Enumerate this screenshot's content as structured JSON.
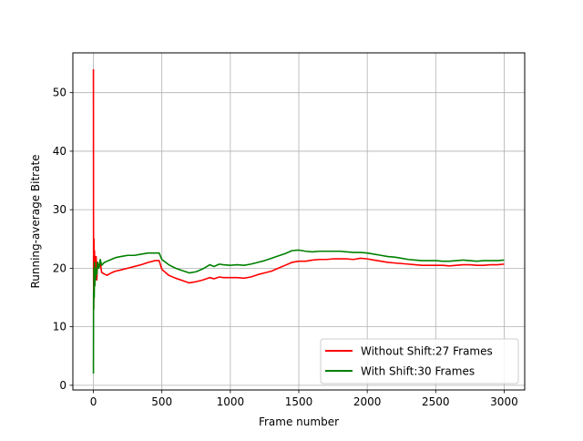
{
  "chart_data": {
    "type": "line",
    "title": "",
    "xlabel": "Frame number",
    "ylabel": "Running-average Bitrate",
    "xlim": [
      -150,
      3150
    ],
    "ylim": [
      -0.8,
      56.8
    ],
    "xticks": [
      0,
      500,
      1000,
      1500,
      2000,
      2500,
      3000
    ],
    "yticks": [
      0,
      10,
      20,
      30,
      40,
      50
    ],
    "grid": true,
    "legend_position": "lower-right",
    "series": [
      {
        "name": "Without Shift:27 Frames",
        "color": "#ff0000",
        "x": [
          0,
          1,
          2,
          4,
          6,
          8,
          10,
          12,
          15,
          20,
          25,
          30,
          40,
          50,
          60,
          80,
          100,
          130,
          160,
          200,
          250,
          300,
          350,
          400,
          450,
          480,
          500,
          550,
          600,
          650,
          700,
          750,
          800,
          850,
          880,
          920,
          950,
          1000,
          1050,
          1100,
          1150,
          1200,
          1250,
          1300,
          1350,
          1400,
          1450,
          1500,
          1550,
          1600,
          1650,
          1700,
          1750,
          1800,
          1850,
          1900,
          1950,
          2000,
          2050,
          2100,
          2150,
          2200,
          2250,
          2300,
          2350,
          2400,
          2450,
          2500,
          2550,
          2600,
          2650,
          2700,
          2750,
          2800,
          2850,
          2900,
          2950,
          3000
        ],
        "y": [
          54,
          20,
          13,
          25,
          18,
          23,
          17,
          22,
          19,
          22,
          18,
          21,
          20,
          21,
          19.3,
          19,
          18.8,
          19.2,
          19.5,
          19.7,
          20,
          20.3,
          20.6,
          21,
          21.3,
          21.3,
          19.8,
          18.8,
          18.3,
          17.9,
          17.5,
          17.7,
          18,
          18.4,
          18.2,
          18.5,
          18.4,
          18.4,
          18.4,
          18.3,
          18.5,
          18.9,
          19.2,
          19.5,
          20,
          20.5,
          21,
          21.2,
          21.2,
          21.4,
          21.5,
          21.5,
          21.6,
          21.6,
          21.6,
          21.5,
          21.7,
          21.6,
          21.4,
          21.2,
          21.0,
          20.9,
          20.8,
          20.7,
          20.6,
          20.5,
          20.5,
          20.5,
          20.5,
          20.4,
          20.5,
          20.6,
          20.6,
          20.5,
          20.5,
          20.6,
          20.6,
          20.7
        ]
      },
      {
        "name": "With Shift:30 Frames",
        "color": "#008000",
        "x": [
          0,
          1,
          2,
          4,
          6,
          8,
          10,
          12,
          15,
          20,
          25,
          30,
          40,
          50,
          60,
          80,
          100,
          130,
          160,
          200,
          250,
          300,
          350,
          400,
          450,
          480,
          500,
          550,
          600,
          650,
          700,
          750,
          800,
          850,
          880,
          920,
          950,
          1000,
          1050,
          1100,
          1150,
          1200,
          1250,
          1300,
          1350,
          1400,
          1450,
          1500,
          1550,
          1600,
          1650,
          1700,
          1750,
          1800,
          1850,
          1900,
          1950,
          2000,
          2050,
          2100,
          2150,
          2200,
          2250,
          2300,
          2350,
          2400,
          2450,
          2500,
          2550,
          2600,
          2650,
          2700,
          2750,
          2800,
          2850,
          2900,
          2950,
          3000
        ],
        "y": [
          2,
          16,
          13,
          20,
          15,
          21,
          17,
          19,
          18,
          20,
          19,
          21,
          20,
          21.5,
          20.5,
          21,
          21.2,
          21.5,
          21.8,
          22,
          22.2,
          22.2,
          22.4,
          22.6,
          22.6,
          22.6,
          21.5,
          20.6,
          20.0,
          19.6,
          19.2,
          19.4,
          19.9,
          20.6,
          20.3,
          20.7,
          20.6,
          20.5,
          20.6,
          20.5,
          20.7,
          21.0,
          21.3,
          21.7,
          22.1,
          22.5,
          23.0,
          23.1,
          22.9,
          22.8,
          22.9,
          22.9,
          22.9,
          22.9,
          22.8,
          22.7,
          22.7,
          22.6,
          22.4,
          22.2,
          22.0,
          21.9,
          21.7,
          21.5,
          21.4,
          21.3,
          21.3,
          21.3,
          21.2,
          21.2,
          21.3,
          21.4,
          21.3,
          21.2,
          21.3,
          21.3,
          21.3,
          21.4
        ]
      }
    ]
  }
}
